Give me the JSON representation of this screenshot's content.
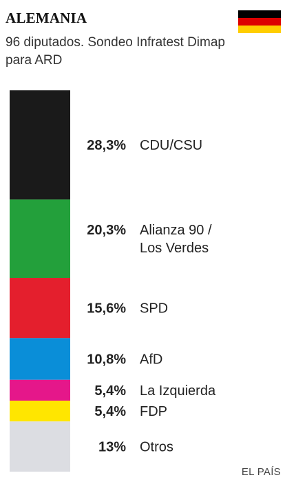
{
  "header": {
    "title": "ALEMANIA",
    "subtitle": "96 diputados. Sondeo Infratest Dimap para ARD"
  },
  "flag": {
    "name": "germany-flag",
    "colors": [
      "#000000",
      "#dd0000",
      "#ffce00"
    ]
  },
  "chart_data": {
    "type": "bar",
    "orientation": "stacked-vertical",
    "series": [
      {
        "name": "CDU/CSU",
        "value": 28.3,
        "label": "28,3%",
        "color": "#1a1a1a"
      },
      {
        "name": "Alianza 90 / Los Verdes",
        "value": 20.3,
        "label": "20,3%",
        "color": "#23a03b"
      },
      {
        "name": "SPD",
        "value": 15.6,
        "label": "15,6%",
        "color": "#e41f2d"
      },
      {
        "name": "AfD",
        "value": 10.8,
        "label": "10,8%",
        "color": "#0a8ed8"
      },
      {
        "name": "La Izquierda",
        "value": 5.4,
        "label": "5,4%",
        "color": "#e5178a"
      },
      {
        "name": "FDP",
        "value": 5.4,
        "label": "5,4%",
        "color": "#ffe600"
      },
      {
        "name": "Otros",
        "value": 13,
        "label": "13%",
        "color": "#dcdde2"
      }
    ],
    "name_lines": {
      "Alianza 90 / Los Verdes": [
        "Alianza 90 /",
        "Los Verdes"
      ]
    }
  },
  "footer": {
    "source": "EL PAÍS"
  }
}
